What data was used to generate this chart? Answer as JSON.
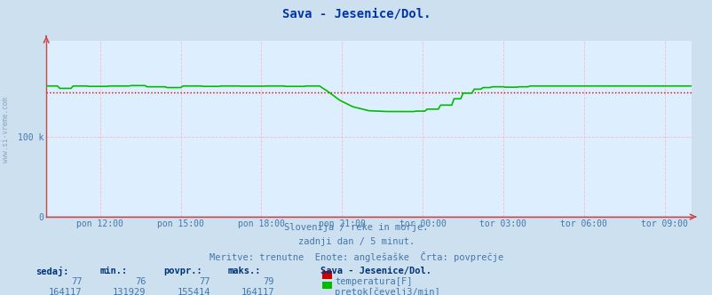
{
  "title": "Sava - Jesenice/Dol.",
  "background_color": "#cce0f0",
  "plot_bg_color": "#ddeeff",
  "grid_v_color": "#ffbbbb",
  "grid_h_color": "#ffbbbb",
  "title_color": "#0033aa",
  "text_color": "#4477aa",
  "table_header_color": "#003377",
  "watermark": "www.si-vreme.com",
  "subtitle1": "Slovenija / reke in morje.",
  "subtitle2": "zadnji dan / 5 minut.",
  "subtitle3": "Meritve: trenutne  Enote: anglešaške  Črta: povprečje",
  "x_ticks_labels": [
    "pon 12:00",
    "pon 15:00",
    "pon 18:00",
    "pon 21:00",
    "tor 00:00",
    "tor 03:00",
    "tor 06:00",
    "tor 09:00"
  ],
  "x_ticks_pos": [
    0.0833,
    0.2083,
    0.3333,
    0.4583,
    0.5833,
    0.7083,
    0.8333,
    0.9583
  ],
  "ylim_max": 220000,
  "ytick_val": 100000,
  "temp_color": "#cc0000",
  "flow_color": "#00bb00",
  "avg_line_color": "#cc0000",
  "flow_avg": 155414,
  "table_headers": [
    "sedaj:",
    "min.:",
    "povpr.:",
    "maks.:"
  ],
  "table_temp": [
    "77",
    "76",
    "77",
    "79"
  ],
  "table_flow": [
    "164117",
    "131929",
    "155414",
    "164117"
  ],
  "legend_title": "Sava - Jesenice/Dol.",
  "legend_temp": "temperatura[F]",
  "legend_flow": "pretok[čevelj3/min]"
}
